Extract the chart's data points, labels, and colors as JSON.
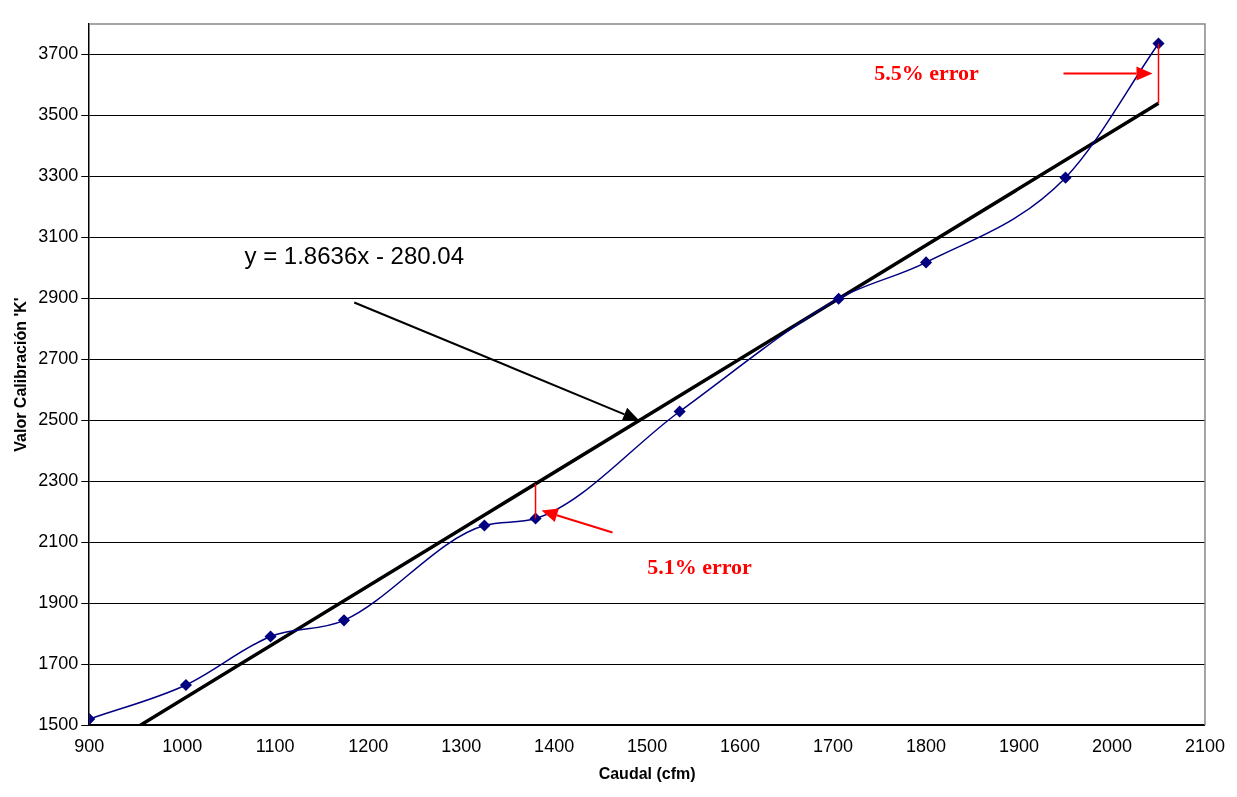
{
  "chart_data": {
    "type": "scatter",
    "xlabel": "Caudal (cfm)",
    "ylabel": "Valor Calibración 'K'",
    "series": [
      {
        "type": "line",
        "color": "#000080",
        "marker": "diamond",
        "x": [
          900,
          1004,
          1095,
          1174,
          1325,
          1380,
          1535,
          1706,
          1800,
          1950,
          2050
        ],
        "values": [
          1520,
          1632,
          1791,
          1844,
          2155,
          2178,
          2529,
          2899,
          3018,
          3296,
          3736
        ]
      },
      {
        "type": "line",
        "color": "#000000",
        "marker": "none",
        "x": [
          955,
          2050
        ],
        "values": [
          1500,
          3540
        ]
      }
    ],
    "xlim": [
      900,
      2100
    ],
    "xticks": [
      900,
      1000,
      1100,
      1200,
      1300,
      1400,
      1500,
      1600,
      1700,
      1800,
      1900,
      2000,
      2100
    ],
    "ylim": [
      1500,
      3800
    ],
    "yticks": [
      1500,
      1700,
      1900,
      2100,
      2300,
      2500,
      2700,
      2900,
      3100,
      3300,
      3500,
      3700
    ],
    "grid": "y",
    "legend": false,
    "annotations": [
      "5.5% error",
      "5.1% error",
      "y = 1.8636x - 280.04"
    ]
  }
}
